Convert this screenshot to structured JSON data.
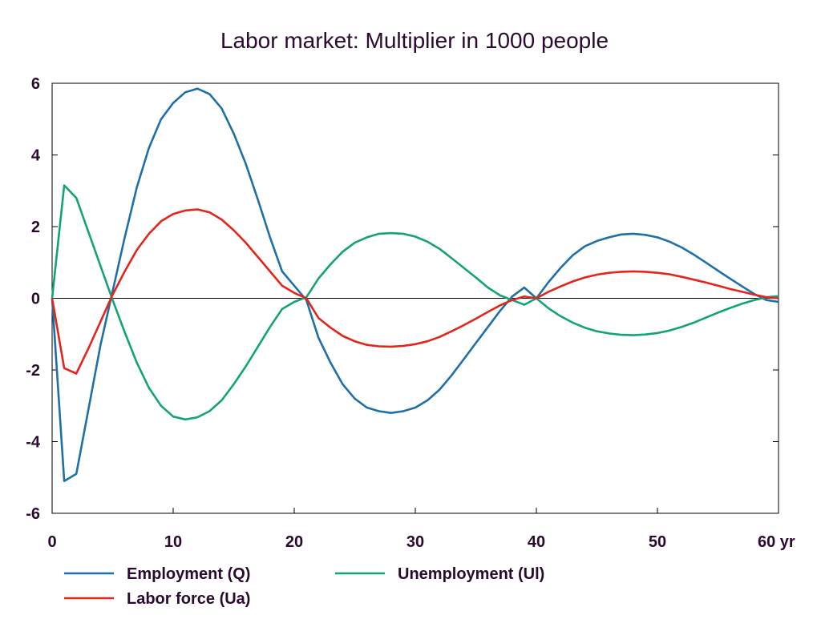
{
  "chart_data": {
    "type": "line",
    "title": "Labor market: Multiplier in 1000 people",
    "xlabel": "",
    "ylabel": "",
    "xlim": [
      0,
      60
    ],
    "ylim": [
      -6,
      6
    ],
    "x_ticks": [
      0,
      10,
      20,
      30,
      40,
      50,
      60
    ],
    "x_tick_labels": [
      "0",
      "10",
      "20",
      "30",
      "40",
      "50",
      "60 yr"
    ],
    "y_ticks": [
      -6,
      -4,
      -2,
      0,
      2,
      4,
      6
    ],
    "y_tick_labels": [
      "-6",
      "-4",
      "-2",
      "0",
      "2",
      "4",
      "6"
    ],
    "grid": false,
    "zero_line": true,
    "legend_position": "bottom",
    "series": [
      {
        "name": "Employment (Q)",
        "color": "#1f6fa8",
        "x": [
          0,
          1,
          2,
          3,
          4,
          5,
          6,
          7,
          8,
          9,
          10,
          11,
          12,
          13,
          14,
          15,
          16,
          17,
          18,
          19,
          20,
          21,
          22,
          23,
          24,
          25,
          26,
          27,
          28,
          29,
          30,
          31,
          32,
          33,
          34,
          35,
          36,
          37,
          38,
          39,
          40,
          41,
          42,
          43,
          44,
          45,
          46,
          47,
          48,
          49,
          50,
          51,
          52,
          53,
          54,
          55,
          56,
          57,
          58,
          59,
          60
        ],
        "values": [
          0,
          -5.1,
          -4.9,
          -3.1,
          -1.3,
          0.2,
          1.7,
          3.1,
          4.2,
          5.0,
          5.45,
          5.75,
          5.85,
          5.7,
          5.3,
          4.6,
          3.75,
          2.75,
          1.7,
          0.75,
          0.35,
          -0.05,
          -1.1,
          -1.8,
          -2.4,
          -2.8,
          -3.05,
          -3.15,
          -3.2,
          -3.15,
          -3.05,
          -2.85,
          -2.55,
          -2.15,
          -1.7,
          -1.25,
          -0.8,
          -0.35,
          0.05,
          0.3,
          0.0,
          0.45,
          0.85,
          1.2,
          1.45,
          1.6,
          1.7,
          1.78,
          1.8,
          1.77,
          1.7,
          1.58,
          1.42,
          1.22,
          1.0,
          0.77,
          0.55,
          0.33,
          0.12,
          -0.05,
          -0.1
        ]
      },
      {
        "name": "Unemployment (Ul)",
        "color": "#13a37a",
        "x": [
          0,
          1,
          2,
          3,
          4,
          5,
          6,
          7,
          8,
          9,
          10,
          11,
          12,
          13,
          14,
          15,
          16,
          17,
          18,
          19,
          20,
          21,
          22,
          23,
          24,
          25,
          26,
          27,
          28,
          29,
          30,
          31,
          32,
          33,
          34,
          35,
          36,
          37,
          38,
          39,
          40,
          41,
          42,
          43,
          44,
          45,
          46,
          47,
          48,
          49,
          50,
          51,
          52,
          53,
          54,
          55,
          56,
          57,
          58,
          59,
          60
        ],
        "values": [
          0,
          3.15,
          2.8,
          1.85,
          0.9,
          -0.05,
          -0.95,
          -1.8,
          -2.5,
          -3.0,
          -3.3,
          -3.38,
          -3.32,
          -3.15,
          -2.85,
          -2.4,
          -1.9,
          -1.35,
          -0.8,
          -0.3,
          -0.1,
          0.03,
          0.55,
          0.95,
          1.3,
          1.55,
          1.7,
          1.8,
          1.82,
          1.8,
          1.72,
          1.58,
          1.38,
          1.12,
          0.85,
          0.58,
          0.3,
          0.08,
          -0.05,
          -0.18,
          0.0,
          -0.28,
          -0.5,
          -0.68,
          -0.82,
          -0.92,
          -0.98,
          -1.02,
          -1.03,
          -1.01,
          -0.97,
          -0.9,
          -0.8,
          -0.68,
          -0.54,
          -0.4,
          -0.27,
          -0.15,
          -0.05,
          0.03,
          0.06
        ]
      },
      {
        "name": "Labor force (Ua)",
        "color": "#e2261b",
        "x": [
          0,
          1,
          2,
          3,
          4,
          5,
          6,
          7,
          8,
          9,
          10,
          11,
          12,
          13,
          14,
          15,
          16,
          17,
          18,
          19,
          20,
          21,
          22,
          23,
          24,
          25,
          26,
          27,
          28,
          29,
          30,
          31,
          32,
          33,
          34,
          35,
          36,
          37,
          38,
          39,
          40,
          41,
          42,
          43,
          44,
          45,
          46,
          47,
          48,
          49,
          50,
          51,
          52,
          53,
          54,
          55,
          56,
          57,
          58,
          59,
          60
        ],
        "values": [
          0,
          -1.95,
          -2.1,
          -1.4,
          -0.65,
          0.1,
          0.75,
          1.35,
          1.8,
          2.15,
          2.35,
          2.45,
          2.48,
          2.4,
          2.2,
          1.9,
          1.55,
          1.15,
          0.75,
          0.35,
          0.15,
          0.0,
          -0.55,
          -0.82,
          -1.05,
          -1.2,
          -1.3,
          -1.34,
          -1.35,
          -1.33,
          -1.28,
          -1.2,
          -1.08,
          -0.92,
          -0.75,
          -0.57,
          -0.38,
          -0.2,
          -0.05,
          0.05,
          0.0,
          0.18,
          0.33,
          0.47,
          0.58,
          0.66,
          0.71,
          0.74,
          0.75,
          0.74,
          0.71,
          0.67,
          0.6,
          0.52,
          0.44,
          0.35,
          0.26,
          0.18,
          0.1,
          0.03,
          0.0
        ]
      }
    ]
  }
}
